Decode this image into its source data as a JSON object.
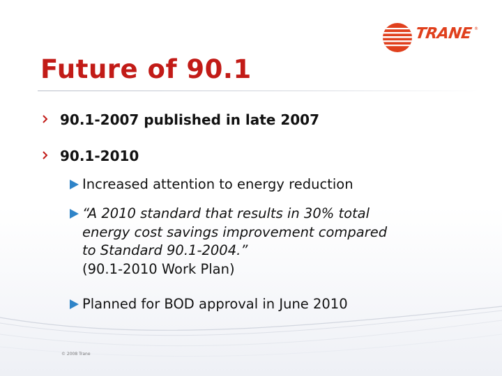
{
  "slide": {
    "title": "Future of 90.1",
    "footer": "© 2008 Trane",
    "logo": {
      "text": "TRANE",
      "trademark": "®",
      "color": "#e0401d"
    },
    "accent": {
      "title_color": "#c21b17",
      "bullet2_color": "#2f84c8"
    },
    "bullets": [
      {
        "text": "90.1-2007 published in late 2007",
        "sub": []
      },
      {
        "text": "90.1-2010",
        "sub": [
          {
            "lines": [
              "Increased attention to energy reduction"
            ]
          },
          {
            "lines": [
              "“A 2010 standard that results in 30% total",
              "energy cost savings improvement compared",
              "to Standard 90.1-2004.”"
            ],
            "note": "(90.1-2010 Work Plan)"
          },
          {
            "lines": [
              "Planned for BOD approval in June 2010"
            ]
          }
        ]
      }
    ]
  }
}
